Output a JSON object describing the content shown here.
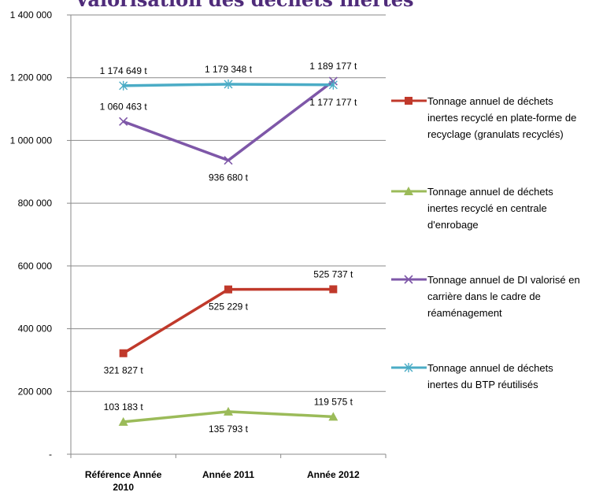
{
  "chart_data": {
    "type": "line",
    "title": "Valorisation des déchets inertes",
    "categories": [
      "Référence Année 2010",
      "Année 2011",
      "Année 2012"
    ],
    "category_lines": [
      [
        "Référence Année",
        "2010"
      ],
      [
        "Année 2011"
      ],
      [
        "Année 2012"
      ]
    ],
    "ylim": [
      0,
      1400000
    ],
    "y_ticks": [
      {
        "value": 0,
        "label": "-"
      },
      {
        "value": 200000,
        "label": "200 000"
      },
      {
        "value": 400000,
        "label": "400 000"
      },
      {
        "value": 600000,
        "label": "600 000"
      },
      {
        "value": 800000,
        "label": "800 000"
      },
      {
        "value": 1000000,
        "label": "1 000 000"
      },
      {
        "value": 1200000,
        "label": "1 200 000"
      },
      {
        "value": 1400000,
        "label": "1 400 000"
      }
    ],
    "grid": true,
    "legend_position": "right",
    "series": [
      {
        "name": "Tonnage annuel de déchets inertes recyclé en plate-forme de recyclage (granulats recyclés)",
        "legend_lines": [
          "Tonnage annuel de déchets",
          "inertes recyclé en plate-forme de",
          "recyclage (granulats recyclés)"
        ],
        "color": "#c0392b",
        "marker": "square",
        "values": [
          321827,
          525229,
          525737
        ],
        "labels": [
          "321 827 t",
          "525 229 t",
          "525 737 t"
        ],
        "label_pos": [
          "below",
          "below",
          "above"
        ]
      },
      {
        "name": "Tonnage annuel de déchets inertes recyclé en centrale d'enrobage",
        "legend_lines": [
          "Tonnage annuel de déchets",
          "inertes recyclé en centrale",
          "d'enrobage"
        ],
        "color": "#9bbb59",
        "marker": "triangle",
        "values": [
          103183,
          135793,
          119575
        ],
        "labels": [
          "103 183 t",
          "135 793 t",
          "119 575 t"
        ],
        "label_pos": [
          "above",
          "below",
          "above"
        ]
      },
      {
        "name": "Tonnage annuel de DI valorisé en carrière dans le cadre de réaménagement",
        "legend_lines": [
          "Tonnage annuel de DI valorisé en",
          "carrière dans le cadre de",
          "réaménagement"
        ],
        "color": "#7e57a8",
        "marker": "x",
        "values": [
          1060463,
          936680,
          1189177
        ],
        "labels": [
          "1 060 463 t",
          "936 680 t",
          "1 189 177 t"
        ],
        "label_pos": [
          "above",
          "below",
          "above"
        ]
      },
      {
        "name": "Tonnage annuel de déchets inertes du BTP réutilisés",
        "legend_lines": [
          "Tonnage annuel de déchets",
          "inertes du BTP réutilisés"
        ],
        "color": "#4bacc6",
        "marker": "star",
        "values": [
          1174649,
          1179348,
          1177177
        ],
        "labels": [
          "1 174 649 t",
          "1 179 348 t",
          "1 177 177 t"
        ],
        "label_pos": [
          "above",
          "above",
          "below"
        ]
      }
    ]
  }
}
